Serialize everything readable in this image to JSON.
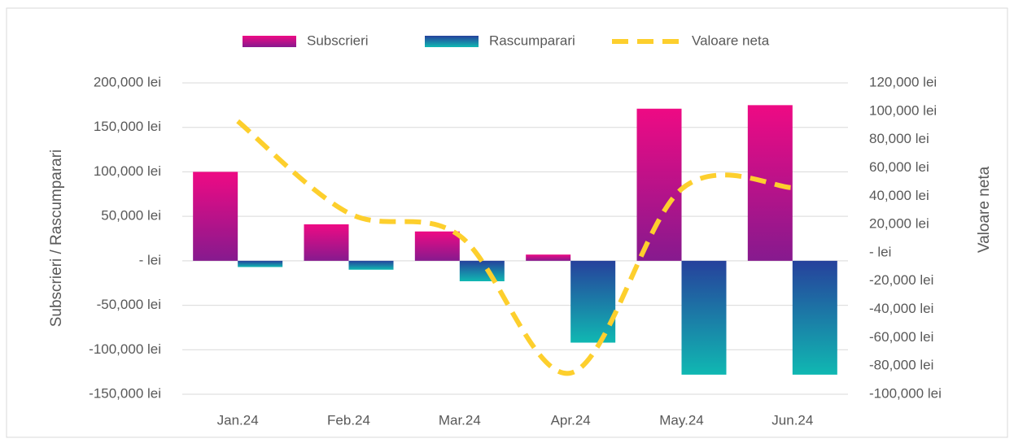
{
  "chart_data": {
    "type": "bar-line",
    "categories": [
      "Jan.24",
      "Feb.24",
      "Mar.24",
      "Apr.24",
      "May.24",
      "Jun.24"
    ],
    "series": [
      {
        "name": "Subscrieri",
        "type": "bar",
        "gradient": [
          "#ee0a84",
          "#861a8e"
        ],
        "values": [
          100000,
          41000,
          33000,
          7000,
          171000,
          175000
        ]
      },
      {
        "name": "Rascumparari",
        "type": "bar",
        "gradient": [
          "#26419c",
          "#10b8b2"
        ],
        "values": [
          -7000,
          -10000,
          -23000,
          -92000,
          -128000,
          -128000
        ]
      },
      {
        "name": "Valoare neta",
        "type": "line",
        "axis": "y2",
        "color": "#fdcf2d",
        "dashed": true,
        "smooth": true,
        "values": [
          93000,
          28000,
          12000,
          -85000,
          45000,
          46000
        ]
      }
    ],
    "y_label": "Subscrieri / Rascumparari",
    "y2_label": "Valoare neta",
    "ylim": [
      -150000,
      200000
    ],
    "yticks": [
      {
        "value": -150000,
        "label": "-150,000 lei"
      },
      {
        "value": -100000,
        "label": "-100,000 lei"
      },
      {
        "value": -50000,
        "label": "-50,000 lei"
      },
      {
        "value": 0,
        "label": "- lei"
      },
      {
        "value": 50000,
        "label": "50,000 lei"
      },
      {
        "value": 100000,
        "label": "100,000 lei"
      },
      {
        "value": 150000,
        "label": "150,000 lei"
      },
      {
        "value": 200000,
        "label": "200,000 lei"
      }
    ],
    "y2lim": [
      -100000,
      120000
    ],
    "y2ticks": [
      {
        "value": -100000,
        "label": "-100,000 lei"
      },
      {
        "value": -80000,
        "label": "-80,000 lei"
      },
      {
        "value": -60000,
        "label": "-60,000 lei"
      },
      {
        "value": -40000,
        "label": "-40,000 lei"
      },
      {
        "value": -20000,
        "label": "-20,000 lei"
      },
      {
        "value": 0,
        "label": "- lei"
      },
      {
        "value": 20000,
        "label": "20,000 lei"
      },
      {
        "value": 40000,
        "label": "40,000 lei"
      },
      {
        "value": 60000,
        "label": "60,000 lei"
      },
      {
        "value": 80000,
        "label": "80,000 lei"
      },
      {
        "value": 100000,
        "label": "100,000 lei"
      },
      {
        "value": 120000,
        "label": "120,000 lei"
      }
    ],
    "grid": true,
    "legend": "top"
  }
}
